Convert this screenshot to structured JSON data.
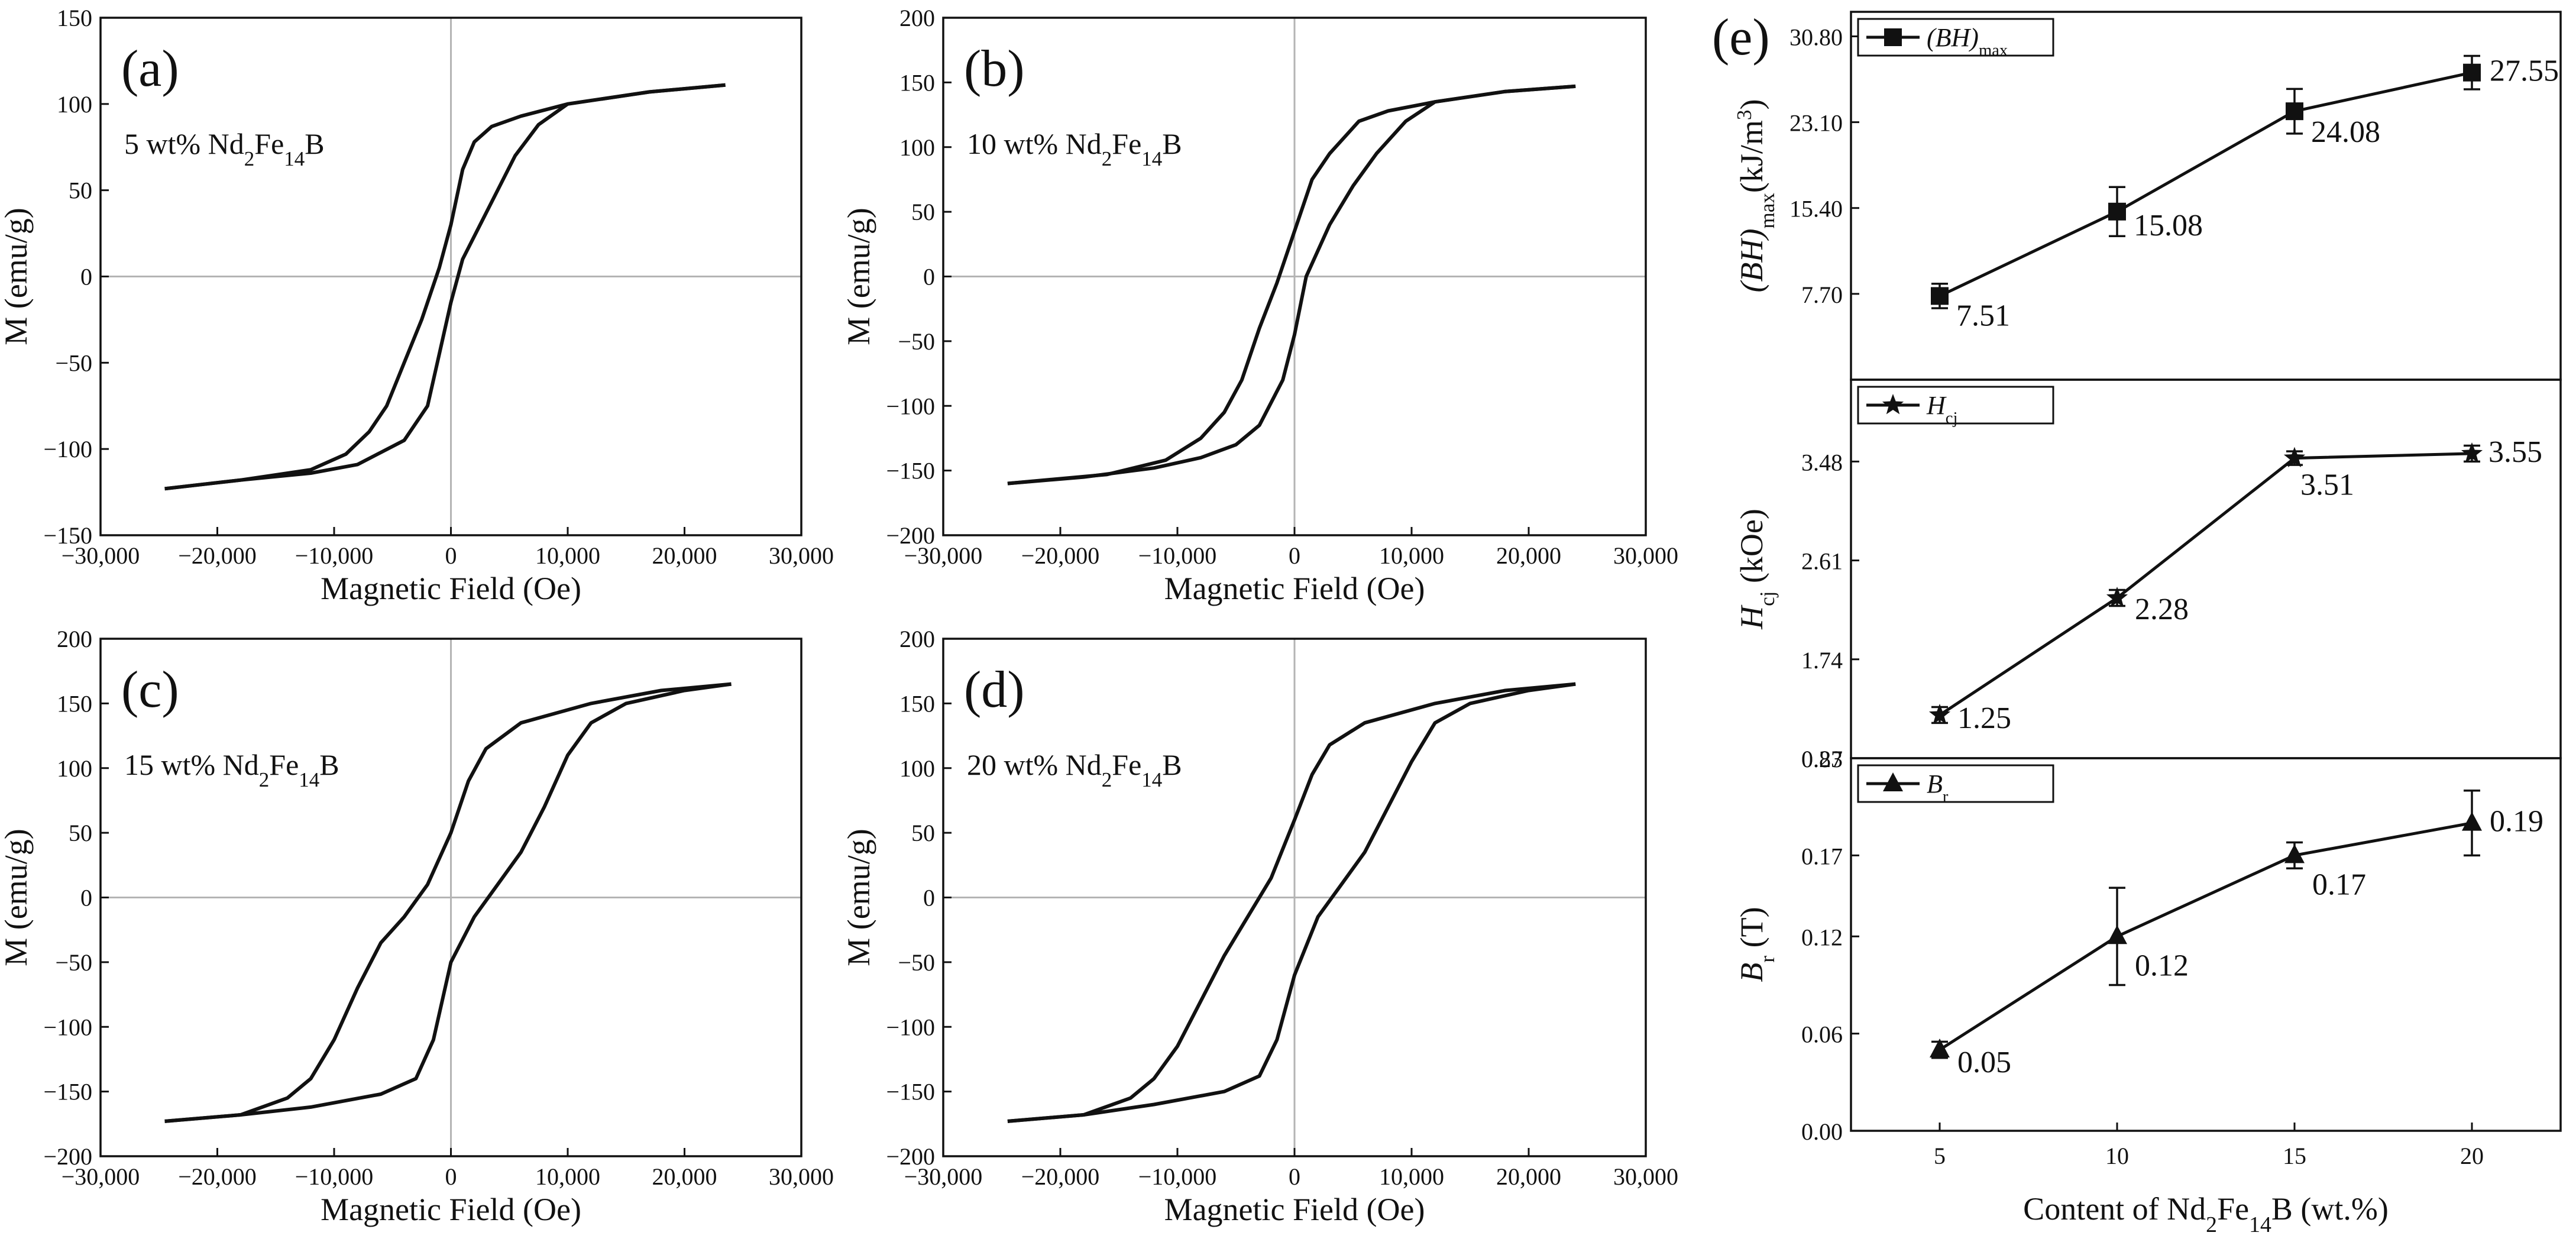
{
  "chart_data": [
    {
      "type": "line",
      "panel": "(a)",
      "annotation": {
        "prefix": "5 wt% Nd",
        "s1": "2",
        "mid": "Fe",
        "s2": "14",
        "suffix": "B"
      },
      "xlabel": "Magnetic Field (Oe)",
      "ylabel": "M (emu/g)",
      "xlim": [
        -30000,
        30000
      ],
      "ylim": [
        -150,
        150
      ],
      "xticks": [
        -30000,
        -20000,
        -10000,
        0,
        10000,
        20000,
        30000
      ],
      "xtick_labels": [
        "−30,000",
        "−20,000",
        "−10,000",
        "0",
        "10,000",
        "20,000",
        "30,000"
      ],
      "yticks": [
        -150,
        -100,
        -50,
        0,
        50,
        100,
        150
      ],
      "ytick_labels": [
        "−150",
        "−100",
        "−50",
        "0",
        "50",
        "100",
        "150"
      ],
      "series": [
        {
          "name": "descending branch",
          "x": [
            23500,
            17000,
            10000,
            6000,
            3500,
            2000,
            1000,
            0,
            -1000,
            -2500,
            -4000,
            -5500,
            -7000,
            -9000,
            -12000,
            -18000,
            -24500
          ],
          "y": [
            111,
            107,
            100,
            93,
            87,
            78,
            62,
            30,
            5,
            -25,
            -50,
            -75,
            -90,
            -103,
            -112,
            -118,
            -123
          ]
        },
        {
          "name": "ascending branch",
          "x": [
            -24500,
            -18000,
            -12000,
            -8000,
            -4000,
            -2000,
            -1000,
            0,
            1000,
            2500,
            4000,
            5500,
            7500,
            10000,
            17000,
            23500
          ],
          "y": [
            -123,
            -118,
            -114,
            -109,
            -95,
            -75,
            -45,
            -15,
            10,
            30,
            50,
            70,
            88,
            100,
            107,
            111
          ]
        }
      ]
    },
    {
      "type": "line",
      "panel": "(b)",
      "annotation": {
        "prefix": "10 wt% Nd",
        "s1": "2",
        "mid": "Fe",
        "s2": "14",
        "suffix": "B"
      },
      "xlabel": "Magnetic Field (Oe)",
      "ylabel": "M (emu/g)",
      "xlim": [
        -30000,
        30000
      ],
      "ylim": [
        -200,
        200
      ],
      "xticks": [
        -30000,
        -20000,
        -10000,
        0,
        10000,
        20000,
        30000
      ],
      "xtick_labels": [
        "−30,000",
        "−20,000",
        "−10,000",
        "0",
        "10,000",
        "20,000",
        "30,000"
      ],
      "yticks": [
        -200,
        -150,
        -100,
        -50,
        0,
        50,
        100,
        150,
        200
      ],
      "ytick_labels": [
        "−200",
        "−150",
        "−100",
        "−50",
        "0",
        "50",
        "100",
        "150",
        "200"
      ],
      "series": [
        {
          "name": "descending branch",
          "x": [
            24000,
            18000,
            12000,
            8000,
            5500,
            3000,
            1500,
            0,
            -1500,
            -3000,
            -4500,
            -6000,
            -8000,
            -11000,
            -16000,
            -24500
          ],
          "y": [
            147,
            143,
            135,
            128,
            120,
            95,
            75,
            35,
            -5,
            -40,
            -80,
            -105,
            -125,
            -142,
            -153,
            -160
          ]
        },
        {
          "name": "ascending branch",
          "x": [
            -24500,
            -18000,
            -12000,
            -8000,
            -5000,
            -3000,
            -1000,
            0,
            1000,
            3000,
            5000,
            7000,
            9500,
            12000,
            18000,
            24000
          ],
          "y": [
            -160,
            -155,
            -148,
            -140,
            -130,
            -115,
            -80,
            -45,
            0,
            40,
            70,
            95,
            120,
            135,
            143,
            147
          ]
        }
      ]
    },
    {
      "type": "line",
      "panel": "(c)",
      "annotation": {
        "prefix": "15 wt% Nd",
        "s1": "2",
        "mid": "Fe",
        "s2": "14",
        "suffix": "B"
      },
      "xlabel": "Magnetic Field (Oe)",
      "ylabel": "M (emu/g)",
      "xlim": [
        -30000,
        30000
      ],
      "ylim": [
        -200,
        200
      ],
      "xticks": [
        -30000,
        -20000,
        -10000,
        0,
        10000,
        20000,
        30000
      ],
      "xtick_labels": [
        "−30,000",
        "−20,000",
        "−10,000",
        "0",
        "10,000",
        "20,000",
        "30,000"
      ],
      "yticks": [
        -200,
        -150,
        -100,
        -50,
        0,
        50,
        100,
        150,
        200
      ],
      "ytick_labels": [
        "−200",
        "−150",
        "−100",
        "−50",
        "0",
        "50",
        "100",
        "150",
        "200"
      ],
      "series": [
        {
          "name": "descending branch",
          "x": [
            24000,
            18000,
            12000,
            6000,
            3000,
            1500,
            0,
            -2000,
            -4000,
            -6000,
            -8000,
            -10000,
            -12000,
            -14000,
            -18000,
            -24500
          ],
          "y": [
            165,
            160,
            150,
            135,
            115,
            90,
            50,
            10,
            -15,
            -35,
            -70,
            -110,
            -140,
            -155,
            -168,
            -173
          ]
        },
        {
          "name": "ascending branch",
          "x": [
            -24500,
            -18000,
            -12000,
            -6000,
            -3000,
            -1500,
            0,
            2000,
            4000,
            6000,
            8000,
            10000,
            12000,
            15000,
            20000,
            24000
          ],
          "y": [
            -173,
            -168,
            -162,
            -152,
            -140,
            -110,
            -50,
            -15,
            10,
            35,
            70,
            110,
            135,
            150,
            160,
            165
          ]
        }
      ]
    },
    {
      "type": "line",
      "panel": "(d)",
      "annotation": {
        "prefix": "20 wt% Nd",
        "s1": "2",
        "mid": "Fe",
        "s2": "14",
        "suffix": "B"
      },
      "xlabel": "Magnetic Field (Oe)",
      "ylabel": "M (emu/g)",
      "xlim": [
        -30000,
        30000
      ],
      "ylim": [
        -200,
        200
      ],
      "xticks": [
        -30000,
        -20000,
        -10000,
        0,
        10000,
        20000,
        30000
      ],
      "xtick_labels": [
        "−30,000",
        "−20,000",
        "−10,000",
        "0",
        "10,000",
        "20,000",
        "30,000"
      ],
      "yticks": [
        -200,
        -150,
        -100,
        -50,
        0,
        50,
        100,
        150,
        200
      ],
      "ytick_labels": [
        "−200",
        "−150",
        "−100",
        "−50",
        "0",
        "50",
        "100",
        "150",
        "200"
      ],
      "series": [
        {
          "name": "descending branch",
          "x": [
            24000,
            18000,
            12000,
            6000,
            3000,
            1500,
            0,
            -2000,
            -4000,
            -6000,
            -8000,
            -10000,
            -12000,
            -14000,
            -18000,
            -24500
          ],
          "y": [
            165,
            160,
            150,
            135,
            118,
            95,
            60,
            15,
            -15,
            -45,
            -80,
            -115,
            -140,
            -155,
            -168,
            -173
          ]
        },
        {
          "name": "ascending branch",
          "x": [
            -24500,
            -18000,
            -12000,
            -6000,
            -3000,
            -1500,
            0,
            2000,
            4000,
            6000,
            8000,
            10000,
            12000,
            15000,
            20000,
            24000
          ],
          "y": [
            -173,
            -168,
            -160,
            -150,
            -138,
            -110,
            -60,
            -15,
            10,
            35,
            70,
            105,
            135,
            150,
            160,
            165
          ]
        }
      ]
    },
    {
      "type": "line",
      "panel": "(e)",
      "xlabel": {
        "prefix": "Content of Nd",
        "s1": "2",
        "mid": "Fe",
        "s2": "14",
        "suffix": "B (wt.%)"
      },
      "categories": [
        5,
        10,
        15,
        20
      ],
      "xtick_labels": [
        "5",
        "10",
        "15",
        "20"
      ],
      "xlim": [
        2.5,
        22.5
      ],
      "subplots": [
        {
          "name": "BHmax",
          "legend": {
            "main": "(BH)",
            "sub": "max"
          },
          "ylabel": {
            "main": "(BH)",
            "sub": "max",
            "suffix": "(kJ/m",
            "sup": "3",
            "close": ")"
          },
          "marker": "square",
          "ylim": [
            0,
            33
          ],
          "yticks": [
            7.7,
            15.4,
            23.1,
            30.8
          ],
          "ytick_labels": [
            "7.70",
            "15.40",
            "23.10",
            "30.80"
          ],
          "values": [
            7.51,
            15.08,
            24.08,
            27.55
          ],
          "errors": [
            1.1,
            2.2,
            2.0,
            1.5
          ],
          "value_labels": [
            "7.51",
            "15.08",
            "24.08",
            "27.55"
          ]
        },
        {
          "name": "Hcj",
          "legend": {
            "main": "H",
            "sub": "cj"
          },
          "ylabel": {
            "main": "H",
            "sub": "cj",
            "suffix": " (kOe)"
          },
          "marker": "star",
          "ylim": [
            0.87,
            4.2
          ],
          "yticks": [
            0.87,
            1.74,
            2.61,
            3.48
          ],
          "ytick_labels": [
            "0.87",
            "1.74",
            "2.61",
            "3.48"
          ],
          "values": [
            1.25,
            2.28,
            3.51,
            3.55
          ],
          "errors": [
            0.07,
            0.07,
            0.06,
            0.07
          ],
          "value_labels": [
            "1.25",
            "2.28",
            "3.51",
            "3.55"
          ]
        },
        {
          "name": "Br",
          "legend": {
            "main": "B",
            "sub": "r"
          },
          "ylabel": {
            "main": "B",
            "sub": "r",
            "suffix": " (T)"
          },
          "marker": "triangle",
          "ylim": [
            0,
            0.23
          ],
          "yticks": [
            0.0,
            0.06,
            0.12,
            0.17,
            0.23
          ],
          "ytick_labels": [
            "0.00",
            "0.06",
            "0.12",
            "0.17",
            "0.23"
          ],
          "values": [
            0.05,
            0.12,
            0.17,
            0.19
          ],
          "errors": [
            0.005,
            0.03,
            0.008,
            0.02
          ],
          "value_labels": [
            "0.05",
            "0.12",
            "0.17",
            "0.19"
          ]
        }
      ]
    }
  ]
}
